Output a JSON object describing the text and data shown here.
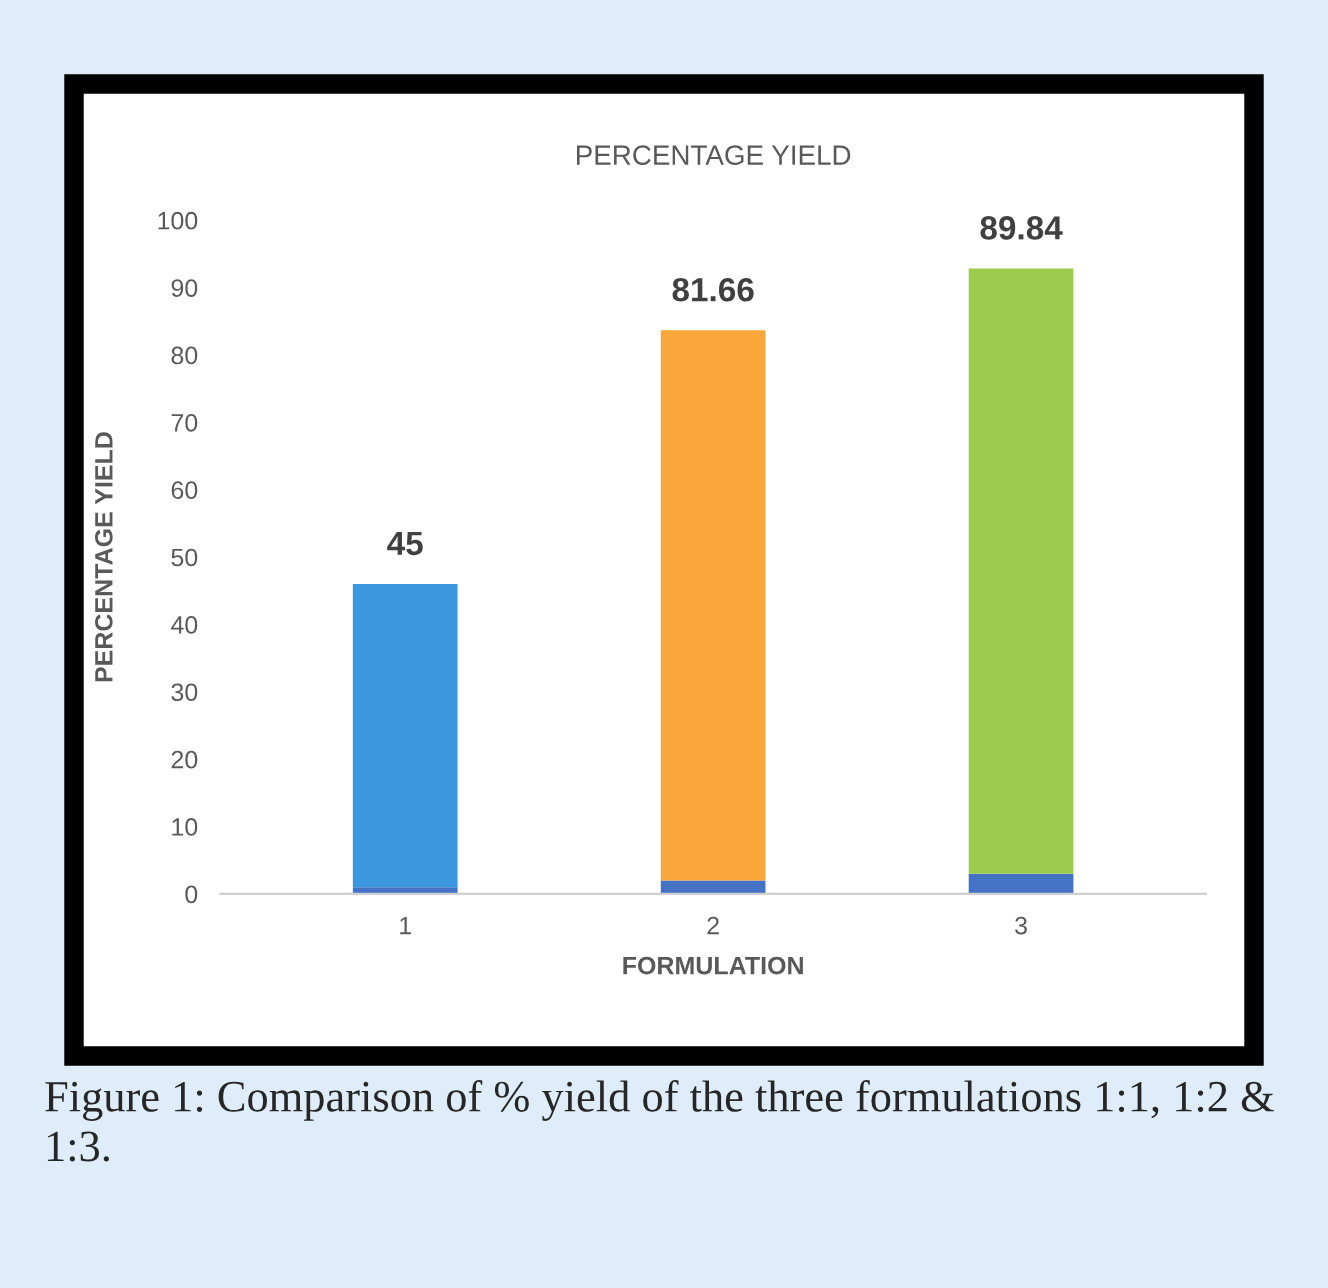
{
  "chart_data": {
    "type": "bar",
    "title": "PERCENTAGE YIELD",
    "xlabel": "FORMULATION",
    "ylabel": "PERCENTAGE YIELD",
    "categories": [
      "1",
      "2",
      "3"
    ],
    "stacked": true,
    "series": [
      {
        "color": "#4472c4",
        "values": [
          1,
          2,
          3
        ]
      },
      {
        "colors": [
          "#3c97dd",
          "#f9a63b",
          "#9ccc4e"
        ],
        "values": [
          45,
          81.66,
          89.84
        ],
        "value_labels": [
          "45",
          "81.66",
          "89.84"
        ]
      }
    ],
    "ylim": [
      0,
      100
    ],
    "yticks": [
      0,
      10,
      20,
      30,
      40,
      50,
      60,
      70,
      80,
      90,
      100
    ],
    "grid": false,
    "legend": false,
    "annotations": [
      "Figure 1: Comparison of % yield of the three formulations 1:1, 1:2 & 1:3."
    ]
  }
}
